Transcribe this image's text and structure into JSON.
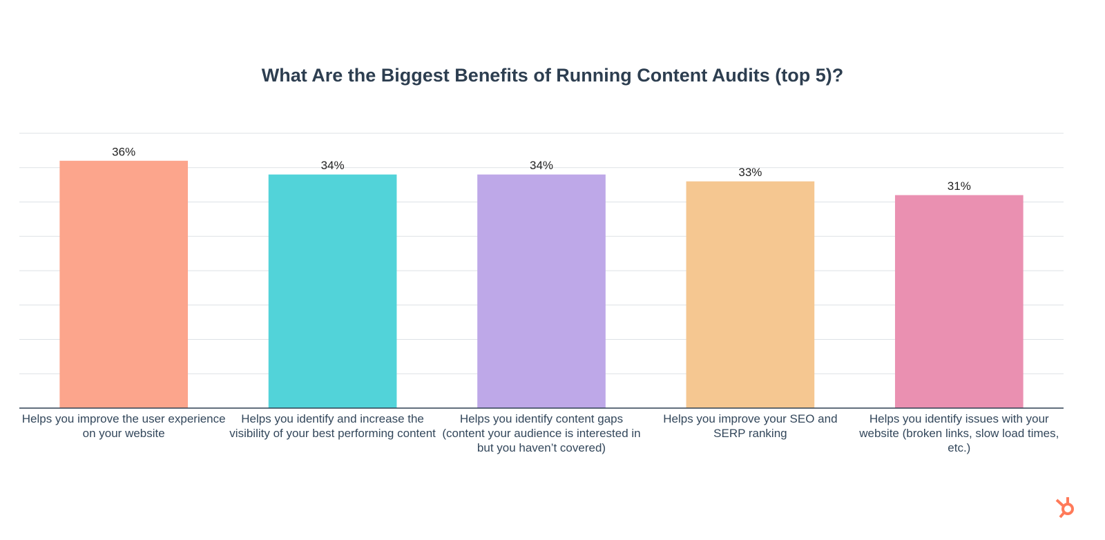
{
  "chart_data": {
    "type": "bar",
    "title": "What Are the Biggest Benefits of Running Content Audits (top 5)?",
    "categories": [
      "Helps you improve the user experience on your website",
      "Helps you identify and increase the visibility of your best performing content",
      "Helps you identify content gaps (content your audience is interested in but you haven’t covered)",
      "Helps you improve your SEO and SERP ranking",
      "Helps you identify issues with your website (broken links, slow load times, etc.)"
    ],
    "values": [
      36,
      34,
      34,
      33,
      31
    ],
    "value_labels": [
      "36%",
      "34%",
      "34%",
      "33%",
      "31%"
    ],
    "colors": [
      "#fca58c",
      "#52d3d9",
      "#bea8e8",
      "#f5c791",
      "#ea90b1"
    ],
    "ylim": [
      0,
      40
    ],
    "yticks": [
      0,
      5,
      10,
      15,
      20,
      25,
      30,
      35,
      40
    ],
    "grid": true
  }
}
